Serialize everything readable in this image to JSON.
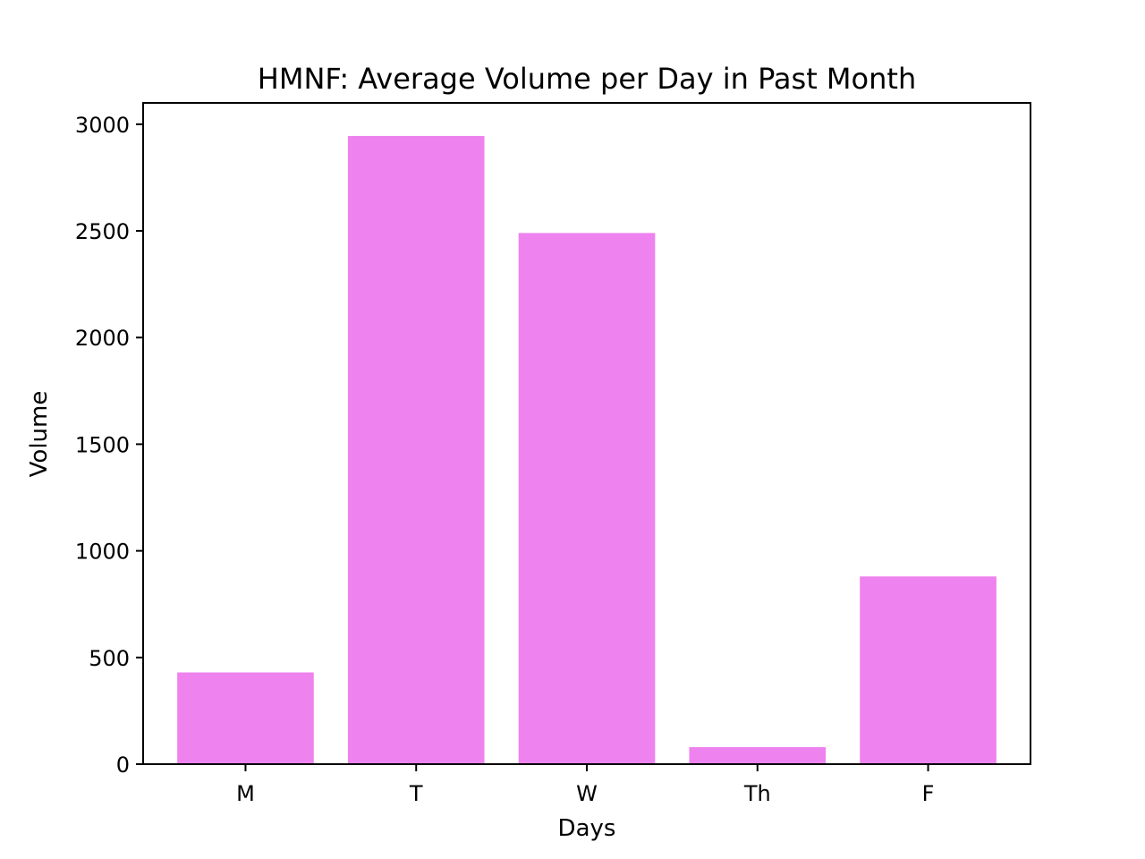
{
  "chart_data": {
    "type": "bar",
    "title": "HMNF: Average Volume per Day in Past Month",
    "xlabel": "Days",
    "ylabel": "Volume",
    "categories": [
      "M",
      "T",
      "W",
      "Th",
      "F"
    ],
    "values": [
      430,
      2945,
      2490,
      80,
      880
    ],
    "ylim": [
      0,
      3100
    ],
    "yticks": [
      0,
      500,
      1000,
      1500,
      2000,
      2500,
      3000
    ],
    "ytick_labels": [
      "0",
      "500",
      "1000",
      "1500",
      "2000",
      "2500",
      "3000"
    ],
    "bar_color": "#ee82ee",
    "grid": false,
    "legend": "none"
  }
}
